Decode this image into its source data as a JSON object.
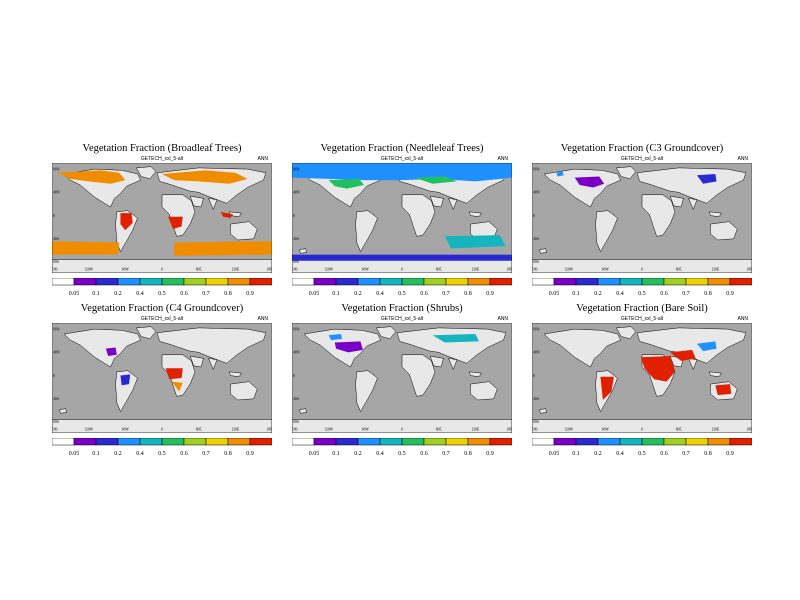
{
  "colors": {
    "land": "#e8e8e8",
    "ocean": "#a6a6a6",
    "scale": [
      "#ffffff",
      "#7a00c8",
      "#2a2ad0",
      "#1e90ff",
      "#15b5c0",
      "#22c060",
      "#a0d020",
      "#f0d000",
      "#f08c00",
      "#e02000"
    ]
  },
  "panels": [
    {
      "id": "broadleaf",
      "title": "Vegetation Fraction (Broadleaf Trees)",
      "subtitle": "GETECH_xxl_5-alt",
      "season": "ANN",
      "colorbar_labels": [
        "0.05",
        "0.1",
        "0.2",
        "0.4",
        "0.5",
        "0.6",
        "0.7",
        "0.8",
        "0.9"
      ]
    },
    {
      "id": "needleleaf",
      "title": "Vegetation Fraction (Needleleaf Trees)",
      "subtitle": "GETECH_xxl_5-alt",
      "season": "ANN",
      "colorbar_labels": [
        "0.05",
        "0.1",
        "0.2",
        "0.4",
        "0.5",
        "0.6",
        "0.7",
        "0.8",
        "0.9"
      ]
    },
    {
      "id": "c3",
      "title": "Vegetation Fraction (C3 Groundcover)",
      "subtitle": "GETECH_xxl_5-alt",
      "season": "ANN",
      "colorbar_labels": [
        "0.05",
        "0.1",
        "0.2",
        "0.4",
        "0.5",
        "0.6",
        "0.7",
        "0.8",
        "0.9"
      ]
    },
    {
      "id": "c4",
      "title": "Vegetation Fraction (C4 Groundcover)",
      "subtitle": "GETECH_xxl_5-alt",
      "season": "ANN",
      "colorbar_labels": [
        "0.05",
        "0.1",
        "0.2",
        "0.4",
        "0.5",
        "0.6",
        "0.7",
        "0.8",
        "0.9"
      ]
    },
    {
      "id": "shrubs",
      "title": "Vegetation Fraction (Shrubs)",
      "subtitle": "GETECH_xxl_5-alt",
      "season": "ANN",
      "colorbar_labels": [
        "0.05",
        "0.1",
        "0.2",
        "0.4",
        "0.5",
        "0.6",
        "0.7",
        "0.8",
        "0.9"
      ]
    },
    {
      "id": "baresoil",
      "title": "Vegetation Fraction (Bare Soil)",
      "subtitle": "GETECH_xxl_5-alt",
      "season": "ANN",
      "colorbar_labels": [
        "0.05",
        "0.1",
        "0.2",
        "0.4",
        "0.5",
        "0.6",
        "0.7",
        "0.8",
        "0.9"
      ]
    }
  ],
  "map_axes": {
    "lon_labels": [
      "180",
      "120W",
      "60W",
      "0",
      "60E",
      "120E",
      "180"
    ],
    "lat_labels": [
      "80N",
      "40N",
      "0",
      "40S",
      "80S"
    ]
  }
}
